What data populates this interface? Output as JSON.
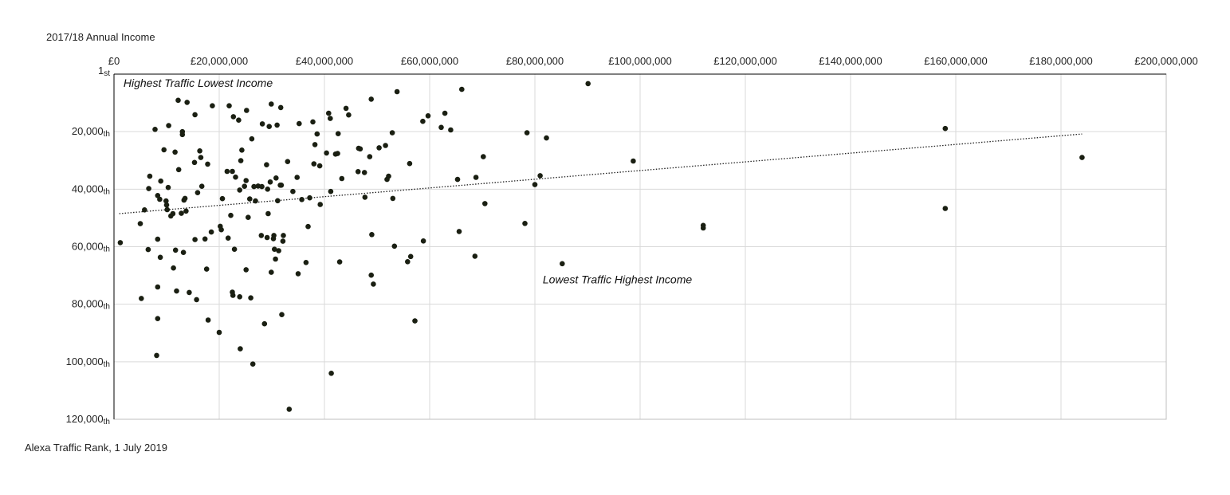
{
  "chart_data": {
    "type": "scatter",
    "xlabel": "2017/18 Annual Income",
    "ylabel": "Alexa Traffic Rank, 1 July 2019",
    "xlim": [
      0,
      200000000
    ],
    "ylim": [
      1,
      120000
    ],
    "y_reversed": true,
    "grid": true,
    "x_ticks": [
      {
        "value": 0,
        "label": "£0"
      },
      {
        "value": 20000000,
        "label": "£20,000,000"
      },
      {
        "value": 40000000,
        "label": "£40,000,000"
      },
      {
        "value": 60000000,
        "label": "£60,000,000"
      },
      {
        "value": 80000000,
        "label": "£80,000,000"
      },
      {
        "value": 100000000,
        "label": "£100,000,000"
      },
      {
        "value": 120000000,
        "label": "£120,000,000"
      },
      {
        "value": 140000000,
        "label": "£140,000,000"
      },
      {
        "value": 160000000,
        "label": "£160,000,000"
      },
      {
        "value": 180000000,
        "label": "£180,000,000"
      },
      {
        "value": 200000000,
        "label": "£200,000,000"
      }
    ],
    "y_ticks": [
      {
        "value": 1,
        "label": "1",
        "suffix": "st"
      },
      {
        "value": 20000,
        "label": "20,000",
        "suffix": "th"
      },
      {
        "value": 40000,
        "label": "40,000",
        "suffix": "th"
      },
      {
        "value": 60000,
        "label": "60,000",
        "suffix": "th"
      },
      {
        "value": 80000,
        "label": "80,000",
        "suffix": "th"
      },
      {
        "value": 100000,
        "label": "100,000",
        "suffix": "th"
      },
      {
        "value": 120000,
        "label": "120,000",
        "suffix": "th"
      }
    ],
    "annotations": [
      {
        "text": "Highest Traffic Lowest Income",
        "x": 1800000,
        "y": 4500
      },
      {
        "text": "Lowest Traffic Highest Income",
        "x": 81500000,
        "y": 72800
      }
    ],
    "trendline": {
      "style": "dotted",
      "x": [
        1000000,
        184000000
      ],
      "y": [
        48500,
        20800
      ]
    },
    "points": [
      [
        1200000,
        58600
      ],
      [
        5000000,
        52000
      ],
      [
        5200000,
        78000
      ],
      [
        5800000,
        47200
      ],
      [
        6500000,
        61000
      ],
      [
        6600000,
        39800
      ],
      [
        6800000,
        35500
      ],
      [
        7800000,
        19200
      ],
      [
        8100000,
        97800
      ],
      [
        8300000,
        74000
      ],
      [
        8300000,
        57400
      ],
      [
        8300000,
        42200
      ],
      [
        8300000,
        85000
      ],
      [
        8700000,
        43500
      ],
      [
        8800000,
        63700
      ],
      [
        8900000,
        37200
      ],
      [
        9500000,
        26300
      ],
      [
        9900000,
        44100
      ],
      [
        10000000,
        45500
      ],
      [
        10100000,
        47100
      ],
      [
        10300000,
        39400
      ],
      [
        10400000,
        17900
      ],
      [
        10800000,
        49300
      ],
      [
        11200000,
        48500
      ],
      [
        11300000,
        67400
      ],
      [
        11600000,
        27100
      ],
      [
        11700000,
        61200
      ],
      [
        11900000,
        75400
      ],
      [
        12200000,
        9100
      ],
      [
        12300000,
        33200
      ],
      [
        12800000,
        48400
      ],
      [
        13000000,
        21000
      ],
      [
        13000000,
        20000
      ],
      [
        13200000,
        62000
      ],
      [
        13300000,
        43800
      ],
      [
        13500000,
        43200
      ],
      [
        13700000,
        47600
      ],
      [
        13900000,
        9800
      ],
      [
        14300000,
        75900
      ],
      [
        15300000,
        30700
      ],
      [
        15400000,
        57500
      ],
      [
        15400000,
        14100
      ],
      [
        15700000,
        78400
      ],
      [
        15900000,
        41200
      ],
      [
        16300000,
        26700
      ],
      [
        16500000,
        29000
      ],
      [
        16700000,
        39000
      ],
      [
        17300000,
        57300
      ],
      [
        17600000,
        67800
      ],
      [
        17800000,
        31300
      ],
      [
        17900000,
        85500
      ],
      [
        18500000,
        54900
      ],
      [
        18700000,
        11000
      ],
      [
        20000000,
        89800
      ],
      [
        20200000,
        52900
      ],
      [
        20400000,
        54100
      ],
      [
        20600000,
        43300
      ],
      [
        21500000,
        33800
      ],
      [
        21700000,
        57000
      ],
      [
        21900000,
        11000
      ],
      [
        22200000,
        49100
      ],
      [
        22500000,
        33800
      ],
      [
        22500000,
        75800
      ],
      [
        22600000,
        76900
      ],
      [
        22700000,
        14800
      ],
      [
        22900000,
        60900
      ],
      [
        23100000,
        35800
      ],
      [
        23700000,
        16000
      ],
      [
        23900000,
        40300
      ],
      [
        23900000,
        77400
      ],
      [
        24000000,
        95500
      ],
      [
        24100000,
        30100
      ],
      [
        24300000,
        26400
      ],
      [
        24800000,
        39000
      ],
      [
        25100000,
        37000
      ],
      [
        25100000,
        68000
      ],
      [
        25200000,
        12600
      ],
      [
        25500000,
        49800
      ],
      [
        25800000,
        43400
      ],
      [
        26000000,
        77800
      ],
      [
        26200000,
        22500
      ],
      [
        26400000,
        100800
      ],
      [
        26600000,
        39100
      ],
      [
        26900000,
        44100
      ],
      [
        27400000,
        38900
      ],
      [
        28000000,
        56100
      ],
      [
        28100000,
        39100
      ],
      [
        28200000,
        17300
      ],
      [
        28600000,
        86800
      ],
      [
        29000000,
        31500
      ],
      [
        29100000,
        56800
      ],
      [
        29200000,
        40000
      ],
      [
        29300000,
        48500
      ],
      [
        29500000,
        18200
      ],
      [
        29700000,
        37500
      ],
      [
        29900000,
        68900
      ],
      [
        29900000,
        10400
      ],
      [
        30300000,
        57200
      ],
      [
        30400000,
        56100
      ],
      [
        30500000,
        60900
      ],
      [
        30700000,
        64300
      ],
      [
        30800000,
        36100
      ],
      [
        31000000,
        17700
      ],
      [
        31100000,
        44000
      ],
      [
        31300000,
        61400
      ],
      [
        31600000,
        38600
      ],
      [
        31700000,
        11600
      ],
      [
        31800000,
        38600
      ],
      [
        31900000,
        83600
      ],
      [
        32100000,
        58100
      ],
      [
        32200000,
        56100
      ],
      [
        33000000,
        30400
      ],
      [
        33300000,
        116500
      ],
      [
        34000000,
        40800
      ],
      [
        34800000,
        35900
      ],
      [
        35000000,
        69400
      ],
      [
        35200000,
        17200
      ],
      [
        35700000,
        43600
      ],
      [
        36500000,
        65500
      ],
      [
        36900000,
        53000
      ],
      [
        37200000,
        43000
      ],
      [
        37800000,
        16600
      ],
      [
        38000000,
        31200
      ],
      [
        38200000,
        24500
      ],
      [
        38600000,
        20800
      ],
      [
        39100000,
        31900
      ],
      [
        39200000,
        45300
      ],
      [
        40400000,
        27400
      ],
      [
        40800000,
        13600
      ],
      [
        41100000,
        15400
      ],
      [
        41200000,
        40800
      ],
      [
        41300000,
        104000
      ],
      [
        42100000,
        27800
      ],
      [
        42500000,
        27600
      ],
      [
        42600000,
        20700
      ],
      [
        42900000,
        65300
      ],
      [
        43300000,
        36300
      ],
      [
        44100000,
        11900
      ],
      [
        44600000,
        14200
      ],
      [
        46400000,
        33900
      ],
      [
        46500000,
        25800
      ],
      [
        46800000,
        26000
      ],
      [
        47600000,
        34200
      ],
      [
        47700000,
        42800
      ],
      [
        48600000,
        28700
      ],
      [
        48900000,
        8700
      ],
      [
        48900000,
        69900
      ],
      [
        49000000,
        55800
      ],
      [
        49300000,
        73000
      ],
      [
        50400000,
        25600
      ],
      [
        51600000,
        24800
      ],
      [
        51900000,
        36600
      ],
      [
        52200000,
        35500
      ],
      [
        52900000,
        20400
      ],
      [
        53000000,
        43200
      ],
      [
        53300000,
        59800
      ],
      [
        53800000,
        6100
      ],
      [
        55800000,
        65200
      ],
      [
        56200000,
        31100
      ],
      [
        56400000,
        63400
      ],
      [
        57200000,
        85800
      ],
      [
        58700000,
        16400
      ],
      [
        58800000,
        58000
      ],
      [
        59700000,
        14500
      ],
      [
        62200000,
        18500
      ],
      [
        62900000,
        13600
      ],
      [
        64000000,
        19400
      ],
      [
        65300000,
        36600
      ],
      [
        65600000,
        54700
      ],
      [
        66100000,
        5300
      ],
      [
        68600000,
        63300
      ],
      [
        68800000,
        35900
      ],
      [
        70200000,
        28700
      ],
      [
        70500000,
        45000
      ],
      [
        78100000,
        51900
      ],
      [
        78500000,
        20400
      ],
      [
        80000000,
        38400
      ],
      [
        81000000,
        35300
      ],
      [
        82200000,
        22200
      ],
      [
        85200000,
        65900
      ],
      [
        90100000,
        3300
      ],
      [
        98700000,
        30200
      ],
      [
        112000000,
        52600
      ],
      [
        112000000,
        53500
      ],
      [
        158000000,
        18900
      ],
      [
        158000000,
        46700
      ],
      [
        184000000,
        29000
      ]
    ]
  }
}
